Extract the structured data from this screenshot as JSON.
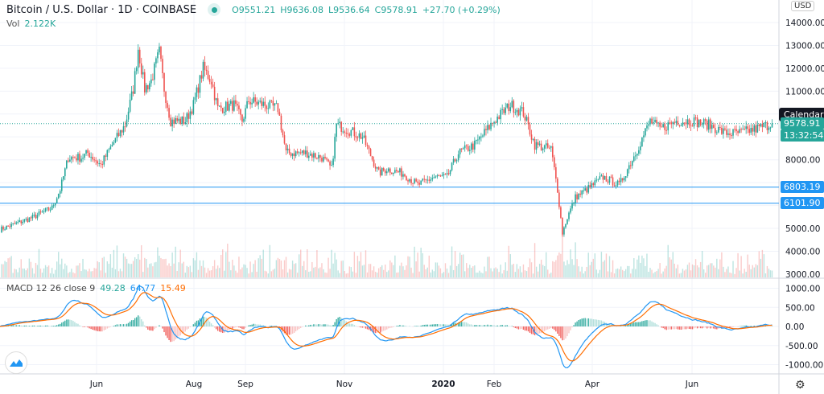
{
  "header": {
    "symbol": "Bitcoin / U.S. Dollar · 1D · COINBASE",
    "open": "O9551.21",
    "high": "H9636.08",
    "low": "L9536.64",
    "close": "C9578.91",
    "change": "+27.70 (+0.29%)",
    "market_status_icon": "market-open-dot"
  },
  "volume": {
    "label": "Vol",
    "value": "2.122K"
  },
  "macd": {
    "label": "MACD 12 26 close 9",
    "histogram": "49.28",
    "macd": "64.77",
    "signal": "15.49",
    "colors": {
      "histogram": "#26a69a",
      "macd": "#2196f3",
      "signal": "#ff6d00"
    }
  },
  "price_axis": {
    "currency": "USD",
    "ticks": [
      "14000.00",
      "13000.00",
      "12000.00",
      "11000.00",
      "8000.00",
      "5000.00",
      "4000.00",
      "3000.00"
    ],
    "last_price": "9578.91",
    "countdown": "13:32:54",
    "lines": [
      "6803.19",
      "6101.90"
    ]
  },
  "macd_axis": {
    "ticks": [
      "1000.00",
      "500.00",
      "0.00",
      "-500.00",
      "-1000.00"
    ]
  },
  "tooltip": "Calendar",
  "colors": {
    "up": "#26a69a",
    "down": "#ef5350",
    "hline": "#2196f3"
  },
  "chart_data": {
    "type": "candlestick",
    "interval": "1D",
    "x_ticks": [
      "Jun",
      "Aug",
      "Sep",
      "Nov",
      "2020",
      "Feb",
      "Apr",
      "Jun"
    ],
    "y_range": [
      3000,
      14000
    ],
    "horizontal_lines": [
      6803.19,
      6101.9
    ],
    "close_path": [
      [
        "2019-04-03",
        4950
      ],
      [
        "2019-04-23",
        5480
      ],
      [
        "2019-05-05",
        5900
      ],
      [
        "2019-05-10",
        6700
      ],
      [
        "2019-05-15",
        8100
      ],
      [
        "2019-05-23",
        8100
      ],
      [
        "2019-05-27",
        8300
      ],
      [
        "2019-06-04",
        7770
      ],
      [
        "2019-06-11",
        8650
      ],
      [
        "2019-06-19",
        9530
      ],
      [
        "2019-06-24",
        11100
      ],
      [
        "2019-06-27",
        12870
      ],
      [
        "2019-07-01",
        11100
      ],
      [
        "2019-07-05",
        11460
      ],
      [
        "2019-07-10",
        12700
      ],
      [
        "2019-07-13",
        11100
      ],
      [
        "2019-07-17",
        9700
      ],
      [
        "2019-07-26",
        9700
      ],
      [
        "2019-07-31",
        10400
      ],
      [
        "2019-08-06",
        12000
      ],
      [
        "2019-08-11",
        11460
      ],
      [
        "2019-08-15",
        10240
      ],
      [
        "2019-08-25",
        10400
      ],
      [
        "2019-08-30",
        9700
      ],
      [
        "2019-09-03",
        10580
      ],
      [
        "2019-09-13",
        10400
      ],
      [
        "2019-09-21",
        10240
      ],
      [
        "2019-09-26",
        8300
      ],
      [
        "2019-10-08",
        8300
      ],
      [
        "2019-10-18",
        8100
      ],
      [
        "2019-10-24",
        7600
      ],
      [
        "2019-10-27",
        9530
      ],
      [
        "2019-11-02",
        9350
      ],
      [
        "2019-11-12",
        9000
      ],
      [
        "2019-11-22",
        7400
      ],
      [
        "2019-11-27",
        7600
      ],
      [
        "2019-12-07",
        7400
      ],
      [
        "2019-12-16",
        6900
      ],
      [
        "2019-12-26",
        7240
      ],
      [
        "2020-01-03",
        7240
      ],
      [
        "2020-01-10",
        8300
      ],
      [
        "2020-01-20",
        8650
      ],
      [
        "2020-02-01",
        9700
      ],
      [
        "2020-02-11",
        10400
      ],
      [
        "2020-02-19",
        10060
      ],
      [
        "2020-02-26",
        8650
      ],
      [
        "2020-03-07",
        8470
      ],
      [
        "2020-03-11",
        6700
      ],
      [
        "2020-03-14",
        4800
      ],
      [
        "2020-03-17",
        5480
      ],
      [
        "2020-03-22",
        6360
      ],
      [
        "2020-03-29",
        6700
      ],
      [
        "2020-04-08",
        7240
      ],
      [
        "2020-04-18",
        6900
      ],
      [
        "2020-04-28",
        8300
      ],
      [
        "2020-05-07",
        9700
      ],
      [
        "2020-05-13",
        9350
      ],
      [
        "2020-05-23",
        9700
      ],
      [
        "2020-06-02",
        9700
      ],
      [
        "2020-06-12",
        9530
      ],
      [
        "2020-06-22",
        9170
      ],
      [
        "2020-07-01",
        9170
      ],
      [
        "2020-07-11",
        9350
      ],
      [
        "2020-07-21",
        9578.91
      ]
    ]
  }
}
